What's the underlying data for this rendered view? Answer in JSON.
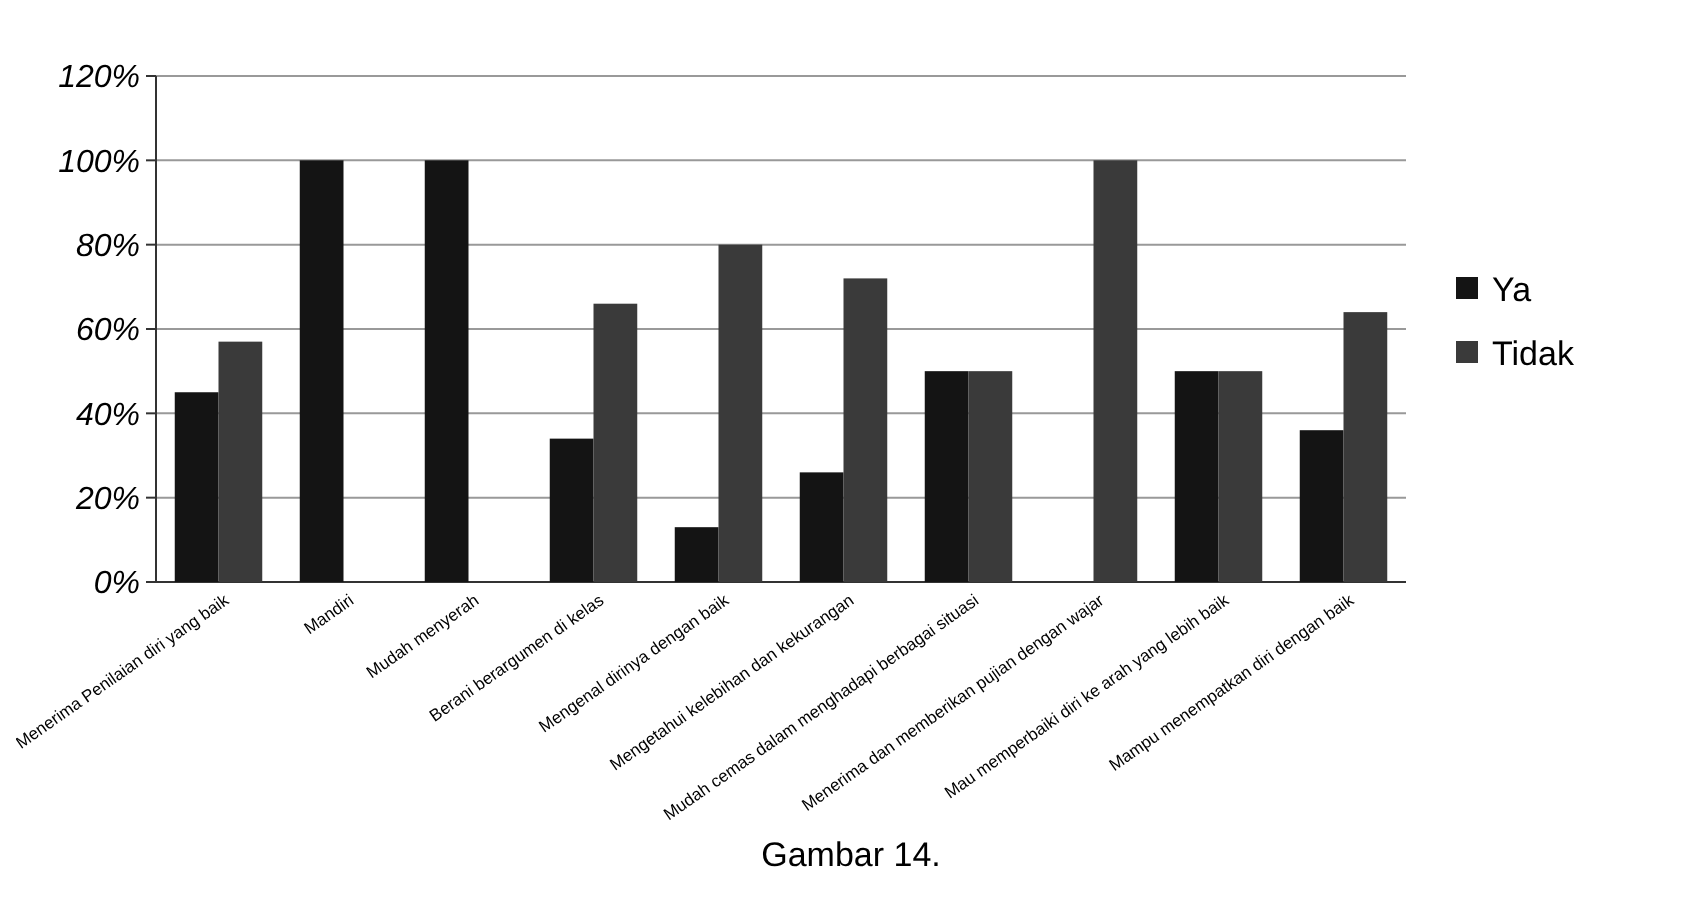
{
  "chart_data": {
    "type": "bar",
    "categories": [
      "Menerima Penilaian diri yang baik",
      "Mandiri",
      "Mudah menyerah",
      "Berani berargumen di kelas",
      "Mengenal dirinya dengan baik",
      "Mengetahui kelebihan dan kekurangan",
      "Mudah cemas dalam menghadapi berbagai situasi",
      "Menerima dan memberikan pujian dengan wajar",
      "Mau memperbaiki diri ke arah yang lebih baik",
      "Mampu menempatkan diri dengan baik"
    ],
    "series": [
      {
        "name": "Ya",
        "color": "#141414",
        "values": [
          45,
          100,
          100,
          34,
          13,
          26,
          50,
          0,
          50,
          36
        ]
      },
      {
        "name": "Tidak",
        "color": "#3a3a3a",
        "values": [
          57,
          0,
          0,
          66,
          80,
          72,
          50,
          100,
          50,
          64
        ]
      }
    ],
    "ylim": [
      0,
      120
    ],
    "yticks": [
      {
        "value": 0,
        "label": "0%"
      },
      {
        "value": 20,
        "label": "20%"
      },
      {
        "value": 40,
        "label": "40%"
      },
      {
        "value": 60,
        "label": "60%"
      },
      {
        "value": 80,
        "label": "80%"
      },
      {
        "value": 100,
        "label": "100%"
      },
      {
        "value": 120,
        "label": "120%"
      }
    ],
    "grid": "y",
    "legend": "right",
    "annotations": [
      "Gambar 14."
    ]
  }
}
